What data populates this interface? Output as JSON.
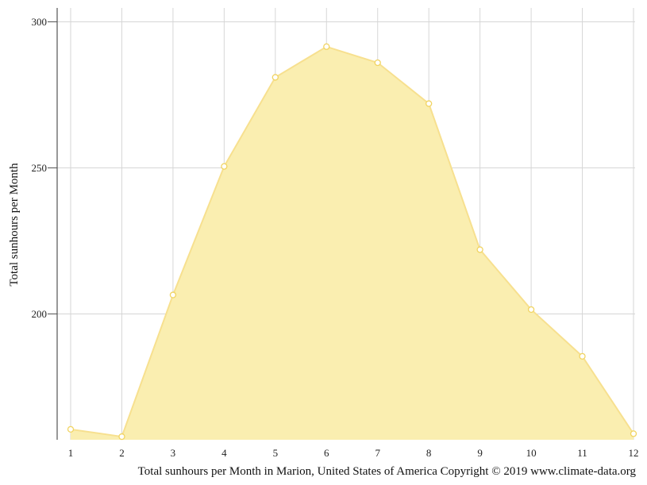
{
  "chart_data": {
    "type": "area",
    "categories": [
      "1",
      "2",
      "3",
      "4",
      "5",
      "6",
      "7",
      "8",
      "9",
      "10",
      "11",
      "12"
    ],
    "series": [
      {
        "values": [
          160.5,
          158,
          206.5,
          250.5,
          281,
          291.5,
          286,
          272,
          222,
          201.5,
          185.5,
          159
        ]
      }
    ],
    "ylabel": "Total sunhours per Month",
    "xlabel": "",
    "caption": "Total sunhours per Month in Marion, United States of America Copyright © 2019 www.climate-data.org",
    "yticks": [
      200,
      250,
      300
    ],
    "ylim": [
      157,
      303
    ],
    "grid": true,
    "legend": "none",
    "colors": {
      "fill": "#faeeb0",
      "line": "#f7e08f",
      "marker_fill": "#ffffff",
      "marker_stroke": "#f1d462",
      "grid": "#d6d6d6",
      "axis": "#555555"
    }
  }
}
